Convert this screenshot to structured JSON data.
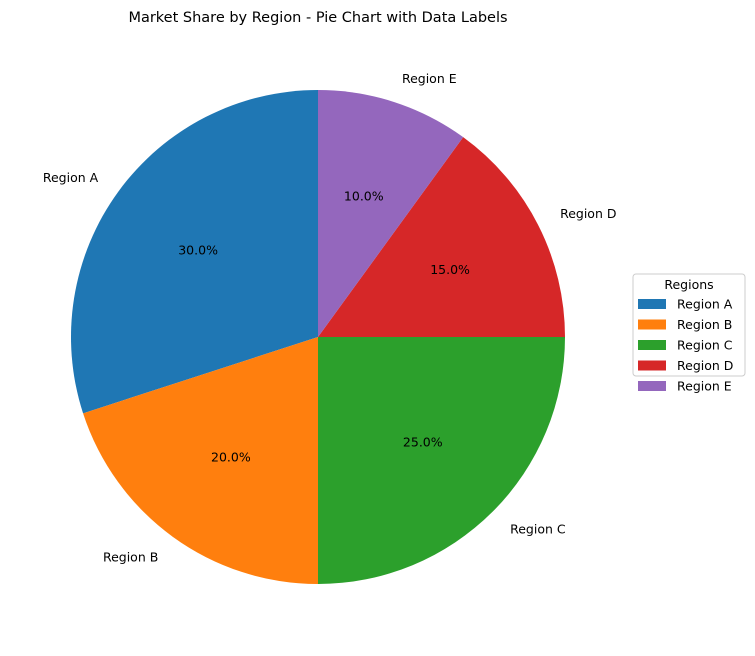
{
  "chart_data": {
    "type": "pie",
    "title": "Market Share by Region - Pie Chart with Data Labels",
    "categories": [
      "Region A",
      "Region B",
      "Region C",
      "Region D",
      "Region E"
    ],
    "values": [
      30.0,
      20.0,
      25.0,
      15.0,
      10.0
    ],
    "value_labels": [
      "30.0%",
      "20.0%",
      "25.0%",
      "15.0%",
      "10.0%"
    ],
    "colors": [
      "#1f77b4",
      "#ff7f0e",
      "#2ca02c",
      "#d62728",
      "#9467bd"
    ],
    "start_angle_deg": 90,
    "direction": "counterclockwise",
    "legend": {
      "title": "Regions",
      "entries": [
        "Region A",
        "Region B",
        "Region C",
        "Region D",
        "Region E"
      ],
      "placement": "center-right"
    }
  }
}
